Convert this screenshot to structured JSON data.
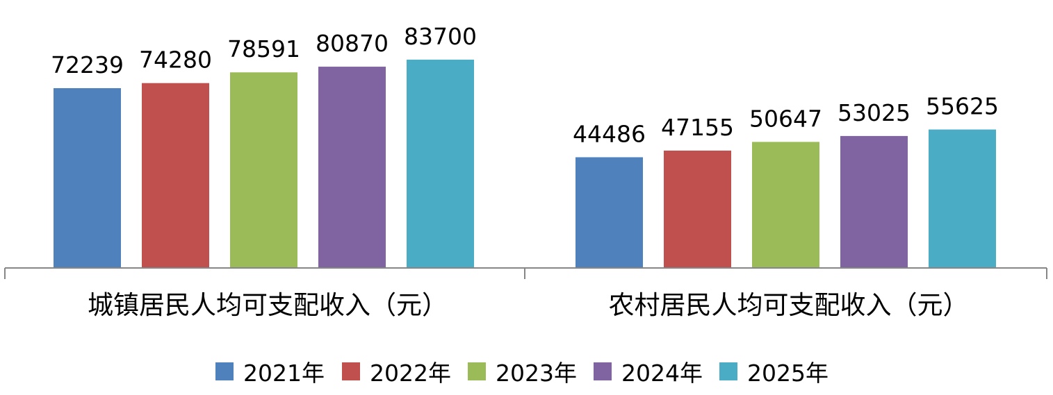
{
  "chart_data": {
    "type": "bar",
    "categories": [
      "城镇居民人均可支配收入（元）",
      "农村居民人均可支配收入（元）"
    ],
    "series": [
      {
        "name": "2021年",
        "values": [
          72239,
          44486
        ],
        "color": "#4F81BD"
      },
      {
        "name": "2022年",
        "values": [
          74280,
          47155
        ],
        "color": "#C0504D"
      },
      {
        "name": "2023年",
        "values": [
          78591,
          50647
        ],
        "color": "#9BBB59"
      },
      {
        "name": "2024年",
        "values": [
          80870,
          53025
        ],
        "color": "#8064A2"
      },
      {
        "name": "2025年",
        "values": [
          83700,
          55625
        ],
        "color": "#4BACC6"
      }
    ],
    "title": "",
    "xlabel": "",
    "ylabel": "",
    "ylim": [
      0,
      100000
    ],
    "grid": false,
    "legend_position": "bottom",
    "data_labels": true,
    "axis_color": "#868686"
  }
}
